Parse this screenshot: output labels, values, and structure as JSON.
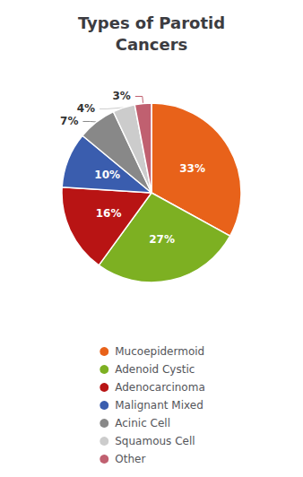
{
  "chart_data": {
    "type": "pie",
    "title": "Types of Parotid\nCancers",
    "categories": [
      "Mucoepidermoid",
      "Adenoid Cystic",
      "Adenocarcinoma",
      "Malignant Mixed",
      "Acinic Cell",
      "Squamous Cell",
      "Other"
    ],
    "values": [
      33,
      27,
      16,
      10,
      7,
      4,
      3
    ],
    "value_labels": [
      "33%",
      "27%",
      "16%",
      "10%",
      "7%",
      "4%",
      "3%"
    ],
    "colors": [
      "#E8621A",
      "#7DB022",
      "#B81414",
      "#3A5DAE",
      "#888888",
      "#CCCCCC",
      "#C06070"
    ],
    "data_labels": true,
    "legend": "bottom"
  }
}
